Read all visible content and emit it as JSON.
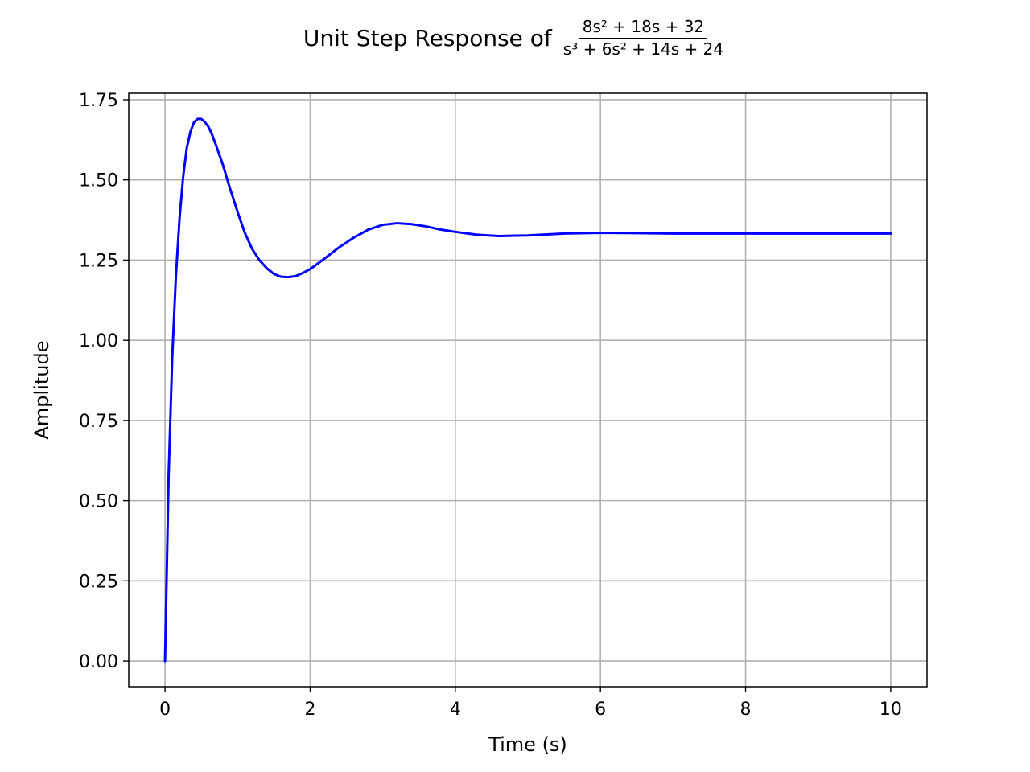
{
  "chart_data": {
    "type": "line",
    "title": "Unit Step Response of",
    "title_fraction": {
      "numerator": "8s² + 18s + 32",
      "denominator": "s³ + 6s² + 14s + 24"
    },
    "xlabel": "Time (s)",
    "ylabel": "Amplitude",
    "xlim": [
      -0.5,
      10.5
    ],
    "ylim": [
      -0.08,
      1.77
    ],
    "xticks": [
      0,
      2,
      4,
      6,
      8,
      10
    ],
    "xtick_labels": [
      "0",
      "2",
      "4",
      "6",
      "8",
      "10"
    ],
    "yticks": [
      0,
      0.25,
      0.5,
      0.75,
      1.0,
      1.25,
      1.5,
      1.75
    ],
    "ytick_labels": [
      "0.00",
      "0.25",
      "0.50",
      "0.75",
      "1.00",
      "1.25",
      "1.50",
      "1.75"
    ],
    "grid": true,
    "series": [
      {
        "color": "#0000ff",
        "x": [
          0,
          0.05,
          0.1,
          0.15,
          0.2,
          0.25,
          0.3,
          0.35,
          0.4,
          0.45,
          0.5,
          0.55,
          0.6,
          0.65,
          0.7,
          0.8,
          0.9,
          1.0,
          1.1,
          1.2,
          1.3,
          1.4,
          1.5,
          1.6,
          1.7,
          1.8,
          1.9,
          2.0,
          2.2,
          2.4,
          2.6,
          2.8,
          3.0,
          3.2,
          3.4,
          3.6,
          3.8,
          4.0,
          4.3,
          4.6,
          5.0,
          5.5,
          6.0,
          6.5,
          7.0,
          8.0,
          9.0,
          10.0
        ],
        "y": [
          0,
          0.58,
          0.95,
          1.2,
          1.38,
          1.51,
          1.6,
          1.65,
          1.68,
          1.69,
          1.69,
          1.68,
          1.665,
          1.64,
          1.61,
          1.545,
          1.47,
          1.4,
          1.335,
          1.285,
          1.25,
          1.225,
          1.207,
          1.198,
          1.197,
          1.2,
          1.21,
          1.222,
          1.255,
          1.29,
          1.32,
          1.345,
          1.36,
          1.365,
          1.362,
          1.355,
          1.345,
          1.338,
          1.329,
          1.325,
          1.327,
          1.333,
          1.335,
          1.334,
          1.333,
          1.333,
          1.333,
          1.333
        ]
      }
    ]
  }
}
